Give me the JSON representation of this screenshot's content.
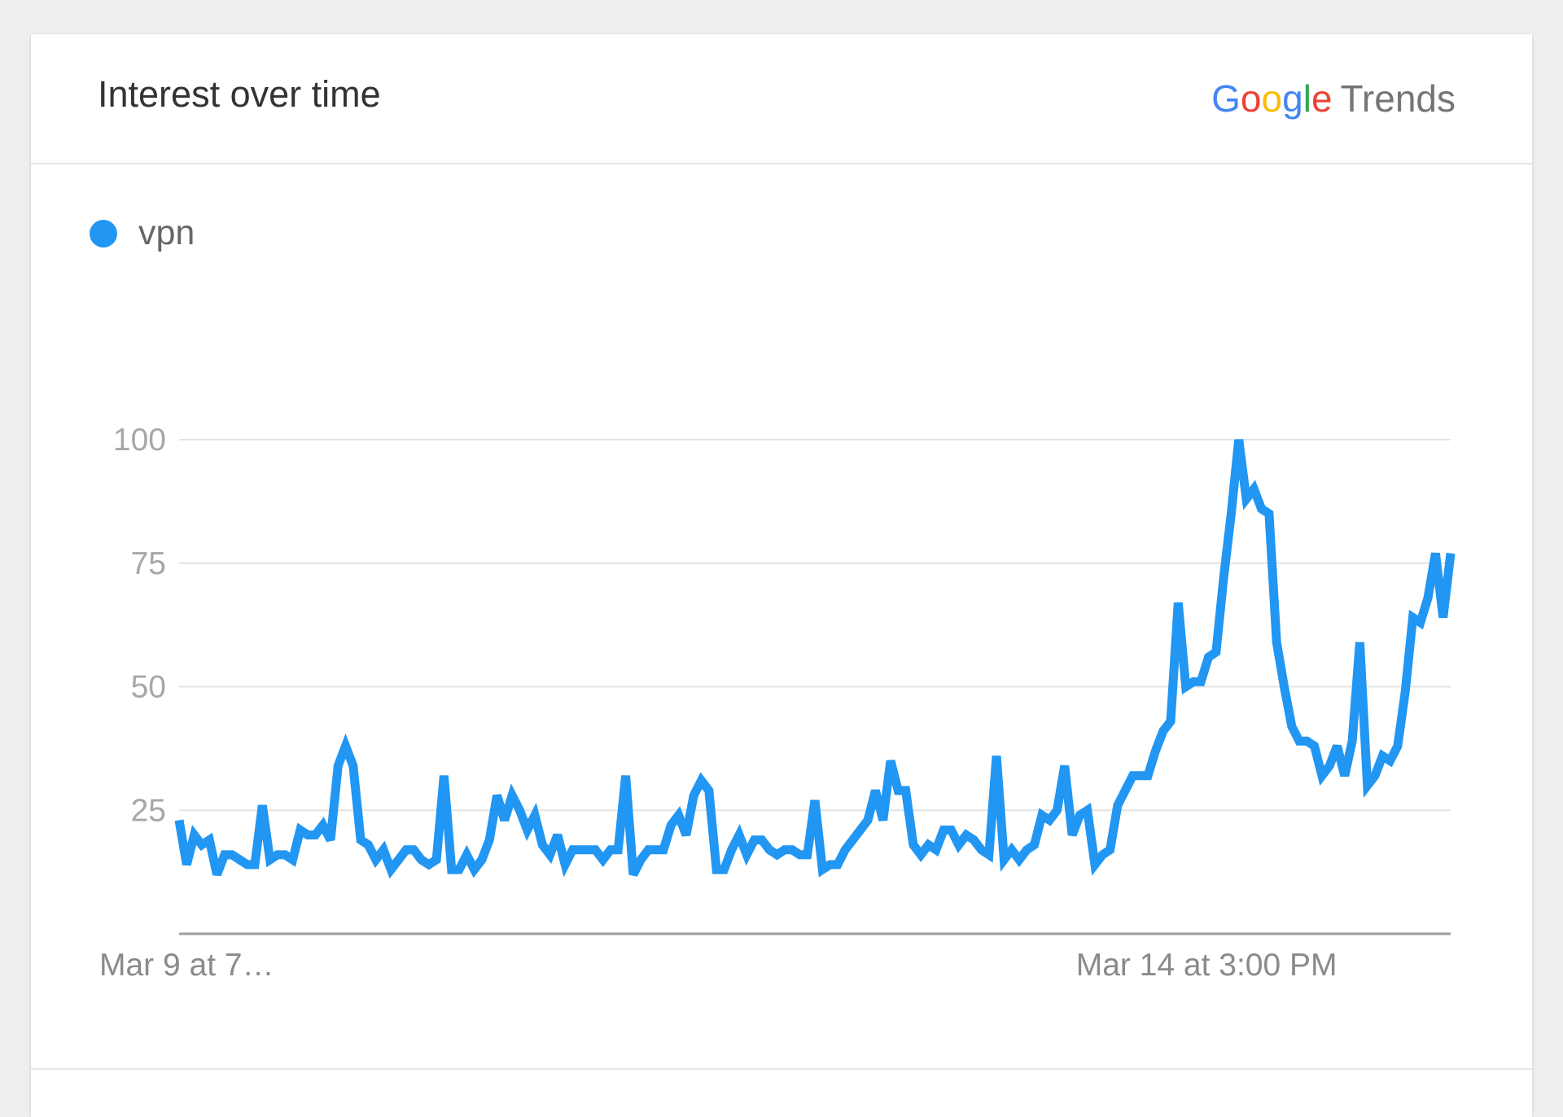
{
  "card": {
    "title": "Interest over time",
    "brand": {
      "letters": [
        "G",
        "o",
        "o",
        "g",
        "l",
        "e"
      ],
      "suffix": "Trends"
    }
  },
  "colors": {
    "line": "#2196f3",
    "brand": [
      "#4285f4",
      "#ea4335",
      "#fbbc05",
      "#4285f4",
      "#34a853",
      "#ea4335"
    ]
  },
  "chart_data": {
    "type": "line",
    "ylim": [
      0,
      100
    ],
    "yticks": [
      25,
      50,
      75,
      100
    ],
    "x_tick_labels": [
      {
        "label": "Mar 9 at 7…",
        "index": 0
      },
      {
        "label": "Mar 14 at 3:00 PM",
        "index": 120
      }
    ],
    "x_axis_line": true,
    "grid": true,
    "legend_position": "top-left",
    "series": [
      {
        "name": "vpn",
        "values": [
          23,
          14,
          20,
          18,
          19,
          12,
          16,
          16,
          15,
          14,
          14,
          26,
          15,
          16,
          16,
          15,
          21,
          20,
          20,
          22,
          19,
          34,
          38,
          34,
          19,
          18,
          15,
          17,
          13,
          15,
          17,
          17,
          15,
          14,
          15,
          32,
          13,
          13,
          16,
          13,
          15,
          19,
          28,
          23,
          28,
          25,
          21,
          24,
          18,
          16,
          20,
          14,
          17,
          17,
          17,
          17,
          15,
          17,
          17,
          32,
          12,
          15,
          17,
          17,
          17,
          22,
          24,
          20,
          28,
          31,
          29,
          13,
          13,
          17,
          20,
          16,
          19,
          19,
          17,
          16,
          17,
          17,
          16,
          16,
          27,
          13,
          14,
          14,
          17,
          19,
          21,
          23,
          29,
          23,
          35,
          29,
          29,
          18,
          16,
          18,
          17,
          21,
          21,
          18,
          20,
          19,
          17,
          16,
          36,
          15,
          17,
          15,
          17,
          18,
          24,
          23,
          25,
          34,
          20,
          24,
          25,
          14,
          16,
          17,
          26,
          29,
          32,
          32,
          32,
          37,
          41,
          43,
          67,
          50,
          51,
          51,
          56,
          57,
          72,
          85,
          100,
          88,
          90,
          86,
          85,
          59,
          50,
          42,
          39,
          39,
          38,
          32,
          34,
          38,
          32,
          39,
          59,
          30,
          32,
          36,
          35,
          38,
          49,
          64,
          63,
          68,
          77,
          64,
          77
        ]
      }
    ]
  }
}
